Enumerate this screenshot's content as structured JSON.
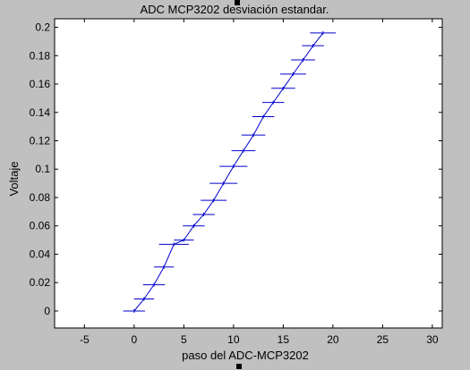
{
  "figure": {
    "background": "#c0c0c0",
    "axes_background": "#ffffff",
    "line_color": "#0000cc"
  },
  "chart_data": {
    "type": "line",
    "title": "ADC MCP3202 desviación estandar.",
    "xlabel": "paso del ADC-MCP3202",
    "ylabel": "Voltaje",
    "xlim": [
      -8,
      31
    ],
    "ylim": [
      -0.012,
      0.206
    ],
    "xticks": [
      -5,
      0,
      5,
      10,
      15,
      20,
      25,
      30
    ],
    "yticks": [
      0,
      0.02,
      0.04,
      0.06,
      0.08,
      0.1,
      0.12,
      0.14,
      0.16,
      0.18,
      0.2
    ],
    "xtick_labels": [
      "-5",
      "0",
      "5",
      "10",
      "15",
      "20",
      "25",
      "30"
    ],
    "ytick_labels": [
      "0",
      "0.02",
      "0.04",
      "0.06",
      "0.08",
      "0.1",
      "0.12",
      "0.14",
      "0.16",
      "0.18",
      "0.2"
    ],
    "grid": false,
    "error_bar_orientation": "horizontal",
    "series": [
      {
        "x": [
          0,
          1,
          2,
          3,
          4,
          5,
          6,
          7,
          8,
          9,
          10,
          11,
          12,
          13,
          14,
          15,
          16,
          17,
          18,
          19
        ],
        "y": [
          0,
          0.0085,
          0.0185,
          0.031,
          0.047,
          0.05,
          0.06,
          0.068,
          0.078,
          0.09,
          0.102,
          0.113,
          0.124,
          0.137,
          0.147,
          0.157,
          0.167,
          0.177,
          0.187,
          0.196
        ],
        "xerr": [
          1.1,
          1.0,
          1.1,
          1.0,
          1.5,
          1.0,
          1.1,
          1.1,
          1.3,
          1.4,
          1.4,
          1.2,
          1.2,
          1.1,
          1.1,
          1.2,
          1.3,
          1.2,
          1.1,
          1.3
        ]
      }
    ]
  }
}
